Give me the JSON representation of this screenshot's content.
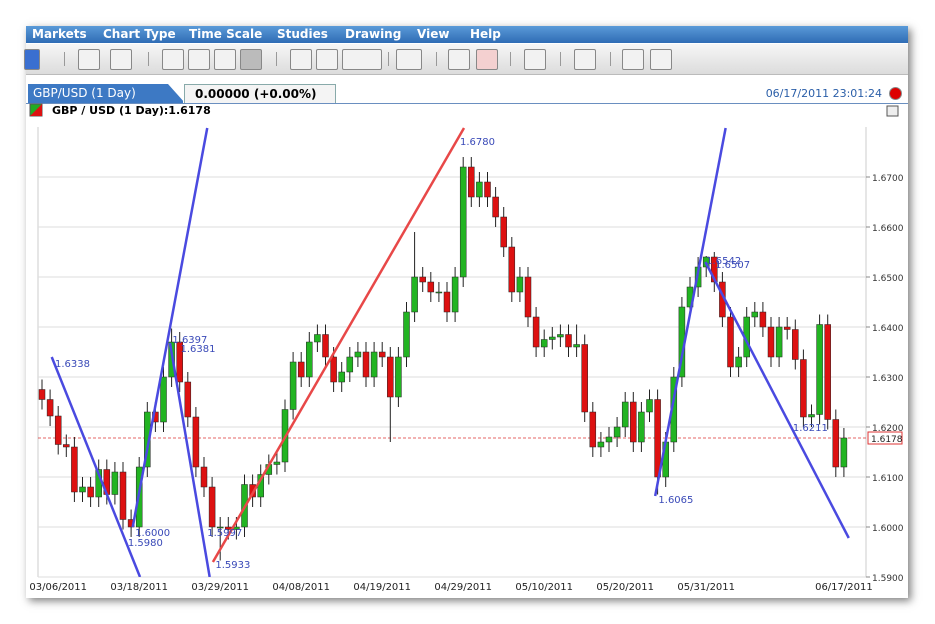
{
  "menu": [
    "Markets",
    "Chart Type",
    "Time Scale",
    "Studies",
    "Drawing",
    "View",
    "Help"
  ],
  "tab": {
    "title": "GBP/USD (1 Day)",
    "change": "0.00000 (+0.00%)",
    "timestamp": "06/17/2011 23:01:24"
  },
  "chart_data": {
    "type": "candlestick",
    "legend": "GBP / USD (1 Day):1.6178",
    "up_color": "#22b422",
    "down_color": "#dd1111",
    "grid": true,
    "categories": [
      null,
      null,
      "03/06/2011",
      null,
      null,
      null,
      null,
      null,
      null,
      null,
      null,
      null,
      "03/18/2011",
      null,
      null,
      null,
      null,
      null,
      null,
      null,
      null,
      null,
      "03/29/2011",
      null,
      null,
      null,
      null,
      null,
      null,
      null,
      null,
      null,
      "04/08/2011",
      null,
      null,
      null,
      null,
      null,
      null,
      null,
      null,
      null,
      "04/19/2011",
      null,
      null,
      null,
      null,
      null,
      null,
      null,
      null,
      null,
      "04/29/2011",
      null,
      null,
      null,
      null,
      null,
      null,
      null,
      null,
      null,
      "05/10/2011",
      null,
      null,
      null,
      null,
      null,
      null,
      null,
      null,
      null,
      "05/20/2011",
      null,
      null,
      null,
      null,
      null,
      null,
      null,
      null,
      null,
      "05/31/2011",
      null,
      null,
      null,
      null,
      null,
      null,
      null,
      null,
      null,
      null,
      null,
      null,
      null,
      null,
      null,
      null,
      "06/17/2011"
    ],
    "open": [
      1.6275,
      1.6255,
      1.6222,
      1.6165,
      1.616,
      1.607,
      1.608,
      1.606,
      1.6115,
      1.6065,
      1.611,
      1.6015,
      1.6,
      1.612,
      1.623,
      1.621,
      1.63,
      1.637,
      1.629,
      1.622,
      1.612,
      1.608,
      1.6,
      1.6,
      1.5995,
      1.6,
      1.6085,
      1.606,
      1.6105,
      1.6125,
      1.613,
      1.6235,
      1.633,
      1.63,
      1.637,
      1.6385,
      1.634,
      1.629,
      1.631,
      1.634,
      1.635,
      1.63,
      1.635,
      1.634,
      1.626,
      1.634,
      1.643,
      1.65,
      1.649,
      1.647,
      1.647,
      1.643,
      1.65,
      1.672,
      1.666,
      1.669,
      1.666,
      1.662,
      1.656,
      1.647,
      1.65,
      1.642,
      1.636,
      1.6375,
      1.638,
      1.6385,
      1.636,
      1.6365,
      1.623,
      1.616,
      1.617,
      1.618,
      1.62,
      1.625,
      1.617,
      1.623,
      1.6255,
      1.61,
      1.617,
      1.63,
      1.644,
      1.648,
      1.652,
      1.654,
      1.649,
      1.642,
      1.632,
      1.634,
      1.642,
      1.643,
      1.64,
      1.634,
      1.64,
      1.6395,
      1.6335,
      1.622,
      1.6225,
      1.6405,
      1.6215,
      1.612
    ],
    "high": [
      1.6295,
      1.6275,
      1.6242,
      1.6185,
      1.618,
      1.61,
      1.61,
      1.6135,
      1.6135,
      1.613,
      1.613,
      1.6035,
      1.614,
      1.625,
      1.625,
      1.632,
      1.6397,
      1.639,
      1.631,
      1.624,
      1.614,
      1.61,
      1.602,
      1.602,
      1.602,
      1.6105,
      1.6105,
      1.6125,
      1.6145,
      1.615,
      1.6255,
      1.635,
      1.635,
      1.639,
      1.6405,
      1.6405,
      1.636,
      1.633,
      1.636,
      1.637,
      1.637,
      1.637,
      1.637,
      1.636,
      1.636,
      1.645,
      1.659,
      1.652,
      1.651,
      1.649,
      1.649,
      1.652,
      1.674,
      1.674,
      1.671,
      1.671,
      1.668,
      1.664,
      1.658,
      1.652,
      1.652,
      1.644,
      1.6395,
      1.64,
      1.6405,
      1.6405,
      1.6405,
      1.6385,
      1.625,
      1.619,
      1.62,
      1.622,
      1.627,
      1.627,
      1.625,
      1.6275,
      1.6275,
      1.619,
      1.632,
      1.646,
      1.65,
      1.654,
      1.6542,
      1.655,
      1.651,
      1.644,
      1.636,
      1.644,
      1.645,
      1.645,
      1.642,
      1.642,
      1.642,
      1.6415,
      1.6355,
      1.6245,
      1.6425,
      1.6425,
      1.6235,
      1.6198
    ],
    "low": [
      1.6235,
      1.6202,
      1.6145,
      1.614,
      1.605,
      1.605,
      1.604,
      1.604,
      1.6045,
      1.6045,
      1.5995,
      1.598,
      1.598,
      1.61,
      1.619,
      1.619,
      1.628,
      1.627,
      1.62,
      1.61,
      1.606,
      1.598,
      1.5933,
      1.5975,
      1.5975,
      1.598,
      1.604,
      1.604,
      1.6085,
      1.6105,
      1.611,
      1.6215,
      1.628,
      1.628,
      1.635,
      1.632,
      1.627,
      1.627,
      1.629,
      1.632,
      1.628,
      1.628,
      1.632,
      1.617,
      1.624,
      1.632,
      1.641,
      1.647,
      1.645,
      1.645,
      1.641,
      1.641,
      1.648,
      1.664,
      1.664,
      1.664,
      1.66,
      1.654,
      1.645,
      1.645,
      1.64,
      1.634,
      1.634,
      1.6355,
      1.636,
      1.634,
      1.634,
      1.621,
      1.614,
      1.614,
      1.615,
      1.616,
      1.618,
      1.615,
      1.615,
      1.621,
      1.6065,
      1.608,
      1.615,
      1.628,
      1.642,
      1.646,
      1.65,
      1.647,
      1.64,
      1.63,
      1.63,
      1.632,
      1.64,
      1.638,
      1.632,
      1.632,
      1.6375,
      1.6315,
      1.62,
      1.62,
      1.6205,
      1.6195,
      1.61,
      1.61
    ],
    "close": [
      1.6255,
      1.6222,
      1.6165,
      1.616,
      1.607,
      1.608,
      1.606,
      1.6115,
      1.6065,
      1.611,
      1.6015,
      1.6,
      1.612,
      1.623,
      1.621,
      1.63,
      1.637,
      1.629,
      1.622,
      1.612,
      1.608,
      1.6,
      1.6,
      1.5995,
      1.6,
      1.6085,
      1.606,
      1.6105,
      1.6125,
      1.613,
      1.6235,
      1.633,
      1.63,
      1.637,
      1.6385,
      1.634,
      1.629,
      1.631,
      1.634,
      1.635,
      1.63,
      1.635,
      1.634,
      1.626,
      1.634,
      1.643,
      1.65,
      1.649,
      1.647,
      1.647,
      1.643,
      1.65,
      1.672,
      1.666,
      1.669,
      1.666,
      1.662,
      1.656,
      1.647,
      1.65,
      1.642,
      1.636,
      1.6375,
      1.638,
      1.6385,
      1.636,
      1.6365,
      1.623,
      1.616,
      1.617,
      1.618,
      1.62,
      1.625,
      1.617,
      1.623,
      1.6255,
      1.61,
      1.617,
      1.63,
      1.644,
      1.648,
      1.652,
      1.654,
      1.649,
      1.642,
      1.632,
      1.634,
      1.642,
      1.643,
      1.64,
      1.634,
      1.64,
      1.6395,
      1.6335,
      1.622,
      1.6225,
      1.6405,
      1.6215,
      1.612,
      1.6178
    ],
    "ylim": [
      1.59,
      1.68
    ],
    "yticks": [
      {
        "value": 1.59,
        "label": "1.5900"
      },
      {
        "value": 1.6,
        "label": "1.6000"
      },
      {
        "value": 1.61,
        "label": "1.6100"
      },
      {
        "value": 1.62,
        "label": "1.6200"
      },
      {
        "value": 1.63,
        "label": "1.6300"
      },
      {
        "value": 1.64,
        "label": "1.6400"
      },
      {
        "value": 1.65,
        "label": "1.6500"
      },
      {
        "value": 1.66,
        "label": "1.6600"
      },
      {
        "value": 1.67,
        "label": "1.6700"
      }
    ],
    "last": {
      "value": 1.6178,
      "label": "1.6178"
    },
    "trendlines": [
      {
        "color": "#4a4ae0",
        "points": [
          [
            1.2,
            1.634
          ],
          [
            12.1,
            1.59
          ]
        ]
      },
      {
        "color": "#4a4ae0",
        "points": [
          [
            11.2,
            1.6
          ],
          [
            20.4,
            1.6798
          ]
        ]
      },
      {
        "color": "#4a4ae0",
        "points": [
          [
            15.8,
            1.6368
          ],
          [
            20.7,
            1.59
          ]
        ]
      },
      {
        "color": "#e84848",
        "points": [
          [
            21.1,
            1.593
          ],
          [
            52.1,
            1.6798
          ]
        ]
      },
      {
        "color": "#4a4ae0",
        "points": [
          [
            75.7,
            1.6062
          ],
          [
            84.4,
            1.6798
          ]
        ]
      },
      {
        "color": "#4a4ae0",
        "points": [
          [
            81.9,
            1.653
          ],
          [
            99.6,
            1.5978
          ]
        ]
      }
    ],
    "annotations": [
      {
        "text": "1.6338",
        "x": 1.6,
        "y": 1.632
      },
      {
        "text": "1.6000",
        "x": 11.5,
        "y": 1.5982
      },
      {
        "text": "1.5980",
        "x": 10.6,
        "y": 1.5962
      },
      {
        "text": "1.6397",
        "x": 16.1,
        "y": 1.6368
      },
      {
        "text": "1.6381",
        "x": 17.1,
        "y": 1.635
      },
      {
        "text": "1.5997",
        "x": 20.4,
        "y": 1.5982
      },
      {
        "text": "1.5933",
        "x": 21.4,
        "y": 1.5918
      },
      {
        "text": "1.6780",
        "x": 51.6,
        "y": 1.6764
      },
      {
        "text": "1.6065",
        "x": 76.1,
        "y": 1.6048
      },
      {
        "text": "1.6542",
        "x": 82,
        "y": 1.6526
      },
      {
        "text": "1.6507",
        "x": 83.1,
        "y": 1.6518
      },
      {
        "text": "1.6211",
        "x": 92.7,
        "y": 1.6192
      }
    ]
  }
}
